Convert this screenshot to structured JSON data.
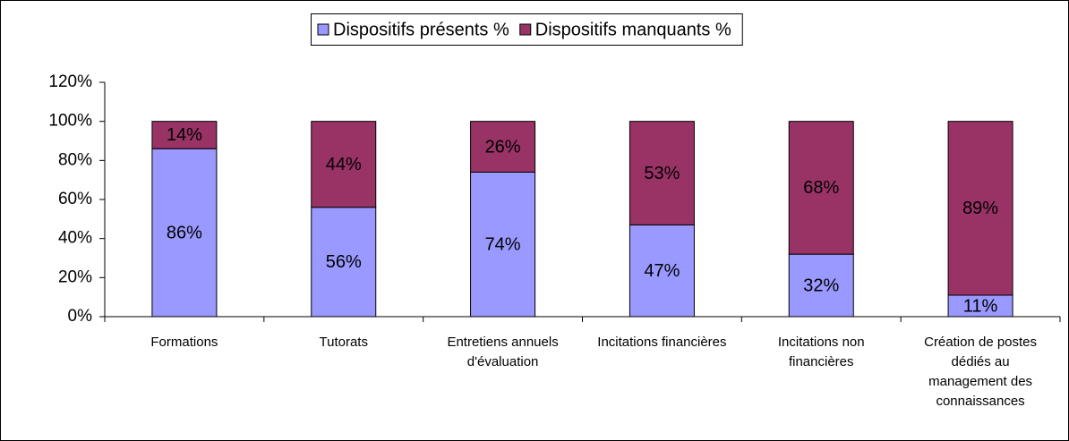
{
  "chart_data": {
    "type": "stacked_bar",
    "categories": [
      "Formations",
      "Tutorats",
      "Entretiens annuels d'évaluation",
      "Incitations financières",
      "Incitations non financières",
      "Création de postes dédiés au management des connaissances"
    ],
    "series": [
      {
        "name": "Dispositifs présents %",
        "color": "#9999ff",
        "values": [
          86,
          56,
          74,
          47,
          32,
          11
        ],
        "value_labels": [
          "86%",
          "56%",
          "74%",
          "47%",
          "32%",
          "11%"
        ]
      },
      {
        "name": "Dispositifs manquants %",
        "color": "#993366",
        "values": [
          14,
          44,
          26,
          53,
          68,
          89
        ],
        "value_labels": [
          "14%",
          "44%",
          "26%",
          "53%",
          "68%",
          "89%"
        ]
      }
    ],
    "ylim": [
      0,
      120
    ],
    "yticks": [
      {
        "value": 0,
        "label": "0%"
      },
      {
        "value": 20,
        "label": "20%"
      },
      {
        "value": 40,
        "label": "40%"
      },
      {
        "value": 60,
        "label": "60%"
      },
      {
        "value": 80,
        "label": "80%"
      },
      {
        "value": 100,
        "label": "100%"
      },
      {
        "value": 120,
        "label": "120%"
      }
    ],
    "grid": false,
    "legend": "top"
  }
}
